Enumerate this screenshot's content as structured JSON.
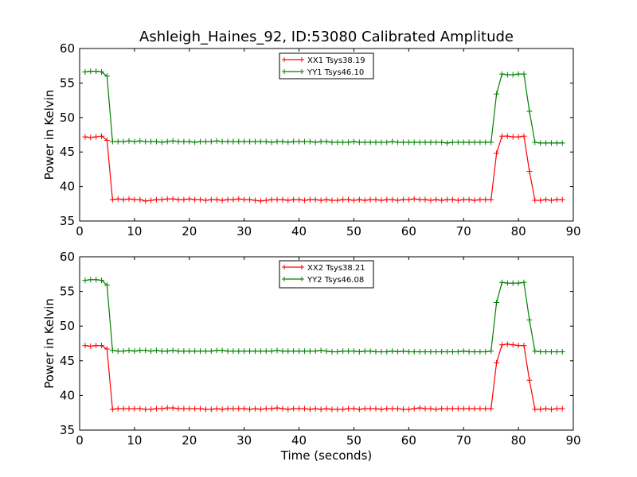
{
  "figure": {
    "title": "Ashleigh_Haines_92, ID:53080 Calibrated Amplitude",
    "colors": {
      "red": "#ff0000",
      "green": "#008000",
      "axes": "#000000",
      "background": "#ffffff"
    }
  },
  "chart_data": [
    {
      "type": "line",
      "ylabel": "Power in Kelvin",
      "xlabel": "",
      "xlim": [
        0,
        90
      ],
      "ylim": [
        35,
        60
      ],
      "xticks": [
        0,
        10,
        20,
        30,
        40,
        50,
        60,
        70,
        80,
        90
      ],
      "yticks": [
        35,
        40,
        45,
        50,
        55,
        60
      ],
      "grid": false,
      "legend_placement": "upper-center",
      "series": [
        {
          "name": "XX1 Tsys38.19",
          "color": "#ff0000",
          "x": [
            1,
            2,
            3,
            4,
            5,
            6,
            7,
            8,
            9,
            10,
            11,
            12,
            13,
            14,
            15,
            16,
            17,
            18,
            19,
            20,
            21,
            22,
            23,
            24,
            25,
            26,
            27,
            28,
            29,
            30,
            31,
            32,
            33,
            34,
            35,
            36,
            37,
            38,
            39,
            40,
            41,
            42,
            43,
            44,
            45,
            46,
            47,
            48,
            49,
            50,
            51,
            52,
            53,
            54,
            55,
            56,
            57,
            58,
            59,
            60,
            61,
            62,
            63,
            64,
            65,
            66,
            67,
            68,
            69,
            70,
            71,
            72,
            73,
            74,
            75,
            76,
            77,
            78,
            79,
            80,
            81,
            82,
            83,
            84,
            85,
            86,
            87,
            88
          ],
          "y": [
            47.2,
            47.1,
            47.2,
            47.3,
            46.7,
            38.1,
            38.2,
            38.1,
            38.2,
            38.1,
            38.1,
            37.9,
            38.0,
            38.1,
            38.1,
            38.2,
            38.2,
            38.1,
            38.1,
            38.2,
            38.1,
            38.1,
            38.0,
            38.1,
            38.1,
            38.0,
            38.1,
            38.1,
            38.2,
            38.1,
            38.1,
            38.0,
            37.9,
            38.0,
            38.1,
            38.1,
            38.1,
            38.0,
            38.1,
            38.1,
            38.0,
            38.1,
            38.1,
            38.0,
            38.1,
            38.0,
            38.0,
            38.1,
            38.1,
            38.0,
            38.1,
            38.0,
            38.1,
            38.1,
            38.0,
            38.1,
            38.1,
            38.0,
            38.1,
            38.1,
            38.2,
            38.1,
            38.1,
            38.0,
            38.1,
            38.0,
            38.1,
            38.1,
            38.0,
            38.1,
            38.1,
            38.0,
            38.1,
            38.1,
            38.1,
            44.8,
            47.3,
            47.3,
            47.2,
            47.2,
            47.3,
            42.2,
            38.0,
            38.0,
            38.1,
            38.0,
            38.1,
            38.1
          ]
        },
        {
          "name": "YY1 Tsys46.10",
          "color": "#008000",
          "x": [
            1,
            2,
            3,
            4,
            5,
            6,
            7,
            8,
            9,
            10,
            11,
            12,
            13,
            14,
            15,
            16,
            17,
            18,
            19,
            20,
            21,
            22,
            23,
            24,
            25,
            26,
            27,
            28,
            29,
            30,
            31,
            32,
            33,
            34,
            35,
            36,
            37,
            38,
            39,
            40,
            41,
            42,
            43,
            44,
            45,
            46,
            47,
            48,
            49,
            50,
            51,
            52,
            53,
            54,
            55,
            56,
            57,
            58,
            59,
            60,
            61,
            62,
            63,
            64,
            65,
            66,
            67,
            68,
            69,
            70,
            71,
            72,
            73,
            74,
            75,
            76,
            77,
            78,
            79,
            80,
            81,
            82,
            83,
            84,
            85,
            86,
            87,
            88
          ],
          "y": [
            56.6,
            56.7,
            56.7,
            56.6,
            56.0,
            46.5,
            46.5,
            46.5,
            46.6,
            46.5,
            46.6,
            46.5,
            46.5,
            46.5,
            46.4,
            46.5,
            46.6,
            46.5,
            46.5,
            46.5,
            46.4,
            46.5,
            46.5,
            46.5,
            46.6,
            46.5,
            46.5,
            46.5,
            46.5,
            46.5,
            46.5,
            46.5,
            46.5,
            46.5,
            46.4,
            46.5,
            46.5,
            46.4,
            46.5,
            46.5,
            46.5,
            46.5,
            46.4,
            46.5,
            46.5,
            46.4,
            46.4,
            46.4,
            46.4,
            46.5,
            46.4,
            46.4,
            46.4,
            46.4,
            46.4,
            46.4,
            46.5,
            46.4,
            46.4,
            46.4,
            46.4,
            46.4,
            46.4,
            46.4,
            46.4,
            46.4,
            46.3,
            46.4,
            46.4,
            46.4,
            46.4,
            46.4,
            46.4,
            46.4,
            46.4,
            53.4,
            56.3,
            56.2,
            56.2,
            56.3,
            56.3,
            50.9,
            46.4,
            46.3,
            46.3,
            46.3,
            46.3,
            46.3
          ]
        }
      ]
    },
    {
      "type": "line",
      "ylabel": "Power in Kelvin",
      "xlabel": "Time (seconds)",
      "xlim": [
        0,
        90
      ],
      "ylim": [
        35,
        60
      ],
      "xticks": [
        0,
        10,
        20,
        30,
        40,
        50,
        60,
        70,
        80,
        90
      ],
      "yticks": [
        35,
        40,
        45,
        50,
        55,
        60
      ],
      "grid": false,
      "legend_placement": "upper-center",
      "series": [
        {
          "name": "XX2 Tsys38.21",
          "color": "#ff0000",
          "x": [
            1,
            2,
            3,
            4,
            5,
            6,
            7,
            8,
            9,
            10,
            11,
            12,
            13,
            14,
            15,
            16,
            17,
            18,
            19,
            20,
            21,
            22,
            23,
            24,
            25,
            26,
            27,
            28,
            29,
            30,
            31,
            32,
            33,
            34,
            35,
            36,
            37,
            38,
            39,
            40,
            41,
            42,
            43,
            44,
            45,
            46,
            47,
            48,
            49,
            50,
            51,
            52,
            53,
            54,
            55,
            56,
            57,
            58,
            59,
            60,
            61,
            62,
            63,
            64,
            65,
            66,
            67,
            68,
            69,
            70,
            71,
            72,
            73,
            74,
            75,
            76,
            77,
            78,
            79,
            80,
            81,
            82,
            83,
            84,
            85,
            86,
            87,
            88
          ],
          "y": [
            47.2,
            47.1,
            47.2,
            47.2,
            46.7,
            38.0,
            38.1,
            38.1,
            38.1,
            38.1,
            38.1,
            38.0,
            38.0,
            38.1,
            38.1,
            38.2,
            38.2,
            38.1,
            38.1,
            38.1,
            38.1,
            38.1,
            38.0,
            38.0,
            38.1,
            38.0,
            38.1,
            38.1,
            38.1,
            38.1,
            38.0,
            38.1,
            38.0,
            38.1,
            38.1,
            38.2,
            38.1,
            38.0,
            38.1,
            38.1,
            38.1,
            38.0,
            38.1,
            38.0,
            38.1,
            38.0,
            38.0,
            38.0,
            38.1,
            38.1,
            38.0,
            38.1,
            38.1,
            38.1,
            38.0,
            38.1,
            38.1,
            38.1,
            38.0,
            38.0,
            38.1,
            38.2,
            38.1,
            38.1,
            38.0,
            38.1,
            38.1,
            38.1,
            38.1,
            38.1,
            38.1,
            38.1,
            38.1,
            38.1,
            38.1,
            44.7,
            47.3,
            47.4,
            47.3,
            47.2,
            47.2,
            42.2,
            38.0,
            38.0,
            38.1,
            38.0,
            38.1,
            38.1
          ]
        },
        {
          "name": "YY2 Tsys46.08",
          "color": "#008000",
          "x": [
            1,
            2,
            3,
            4,
            5,
            6,
            7,
            8,
            9,
            10,
            11,
            12,
            13,
            14,
            15,
            16,
            17,
            18,
            19,
            20,
            21,
            22,
            23,
            24,
            25,
            26,
            27,
            28,
            29,
            30,
            31,
            32,
            33,
            34,
            35,
            36,
            37,
            38,
            39,
            40,
            41,
            42,
            43,
            44,
            45,
            46,
            47,
            48,
            49,
            50,
            51,
            52,
            53,
            54,
            55,
            56,
            57,
            58,
            59,
            60,
            61,
            62,
            63,
            64,
            65,
            66,
            67,
            68,
            69,
            70,
            71,
            72,
            73,
            74,
            75,
            76,
            77,
            78,
            79,
            80,
            81,
            82,
            83,
            84,
            85,
            86,
            87,
            88
          ],
          "y": [
            56.6,
            56.7,
            56.7,
            56.6,
            55.9,
            46.5,
            46.4,
            46.4,
            46.5,
            46.4,
            46.5,
            46.5,
            46.4,
            46.5,
            46.4,
            46.4,
            46.5,
            46.4,
            46.4,
            46.4,
            46.4,
            46.4,
            46.4,
            46.4,
            46.5,
            46.5,
            46.4,
            46.4,
            46.4,
            46.4,
            46.4,
            46.4,
            46.4,
            46.4,
            46.4,
            46.5,
            46.4,
            46.4,
            46.4,
            46.4,
            46.4,
            46.4,
            46.4,
            46.5,
            46.4,
            46.3,
            46.3,
            46.4,
            46.4,
            46.4,
            46.3,
            46.4,
            46.4,
            46.3,
            46.3,
            46.3,
            46.4,
            46.3,
            46.4,
            46.3,
            46.3,
            46.3,
            46.3,
            46.3,
            46.3,
            46.3,
            46.3,
            46.3,
            46.3,
            46.4,
            46.3,
            46.3,
            46.3,
            46.3,
            46.4,
            53.4,
            56.3,
            56.2,
            56.2,
            56.2,
            56.3,
            50.9,
            46.4,
            46.3,
            46.3,
            46.3,
            46.3,
            46.3
          ]
        }
      ]
    }
  ]
}
